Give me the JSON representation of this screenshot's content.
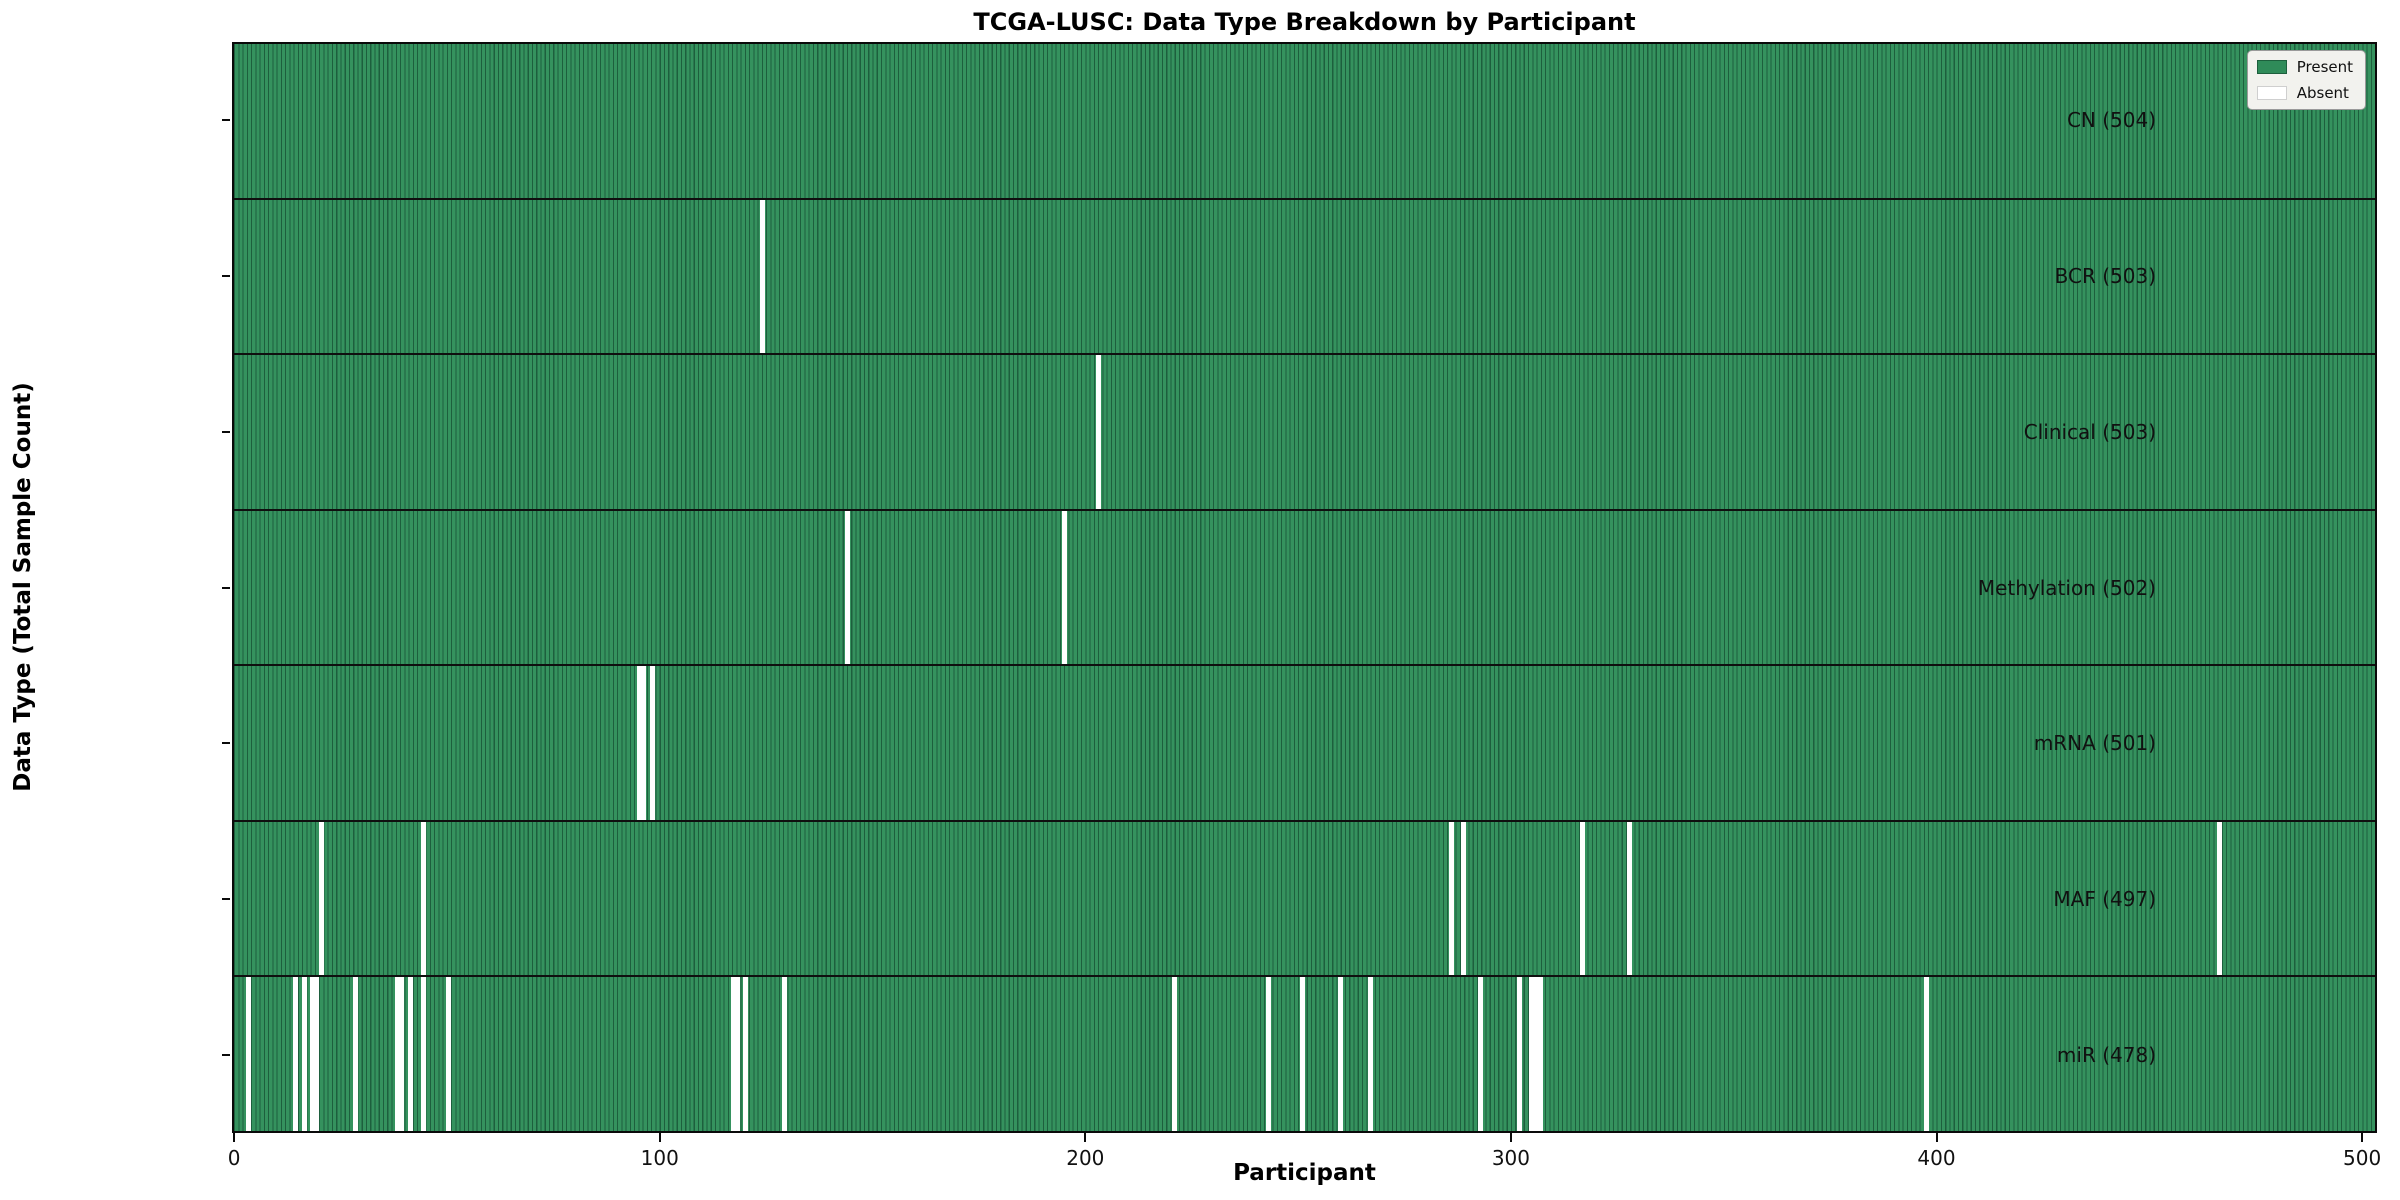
{
  "title": "TCGA-LUSC: Data Type Breakdown by Participant",
  "xlabel": "Participant",
  "ylabel": "Data Type (Total Sample Count)",
  "legend": {
    "present_label": "Present",
    "absent_label": "Absent"
  },
  "colors": {
    "present_fill": "#35925e",
    "bar_edge": "#1d5f3d",
    "absent_fill": "#ffffff",
    "separator": "#0f0f0f",
    "legend_bg": "#f2f2ee"
  },
  "chart_data": {
    "type": "heatmap",
    "title": "TCGA-LUSC: Data Type Breakdown by Participant",
    "xlabel": "Participant",
    "ylabel": "Data Type (Total Sample Count)",
    "legend": [
      "Present",
      "Absent"
    ],
    "legend_position": "upper right",
    "total_participants": 504,
    "xlim": [
      0,
      504
    ],
    "x_ticks": [
      0,
      100,
      200,
      300,
      400,
      500
    ],
    "rows": [
      {
        "name": "CN",
        "label": "CN (504)",
        "present_count": 504,
        "absent_count": 0,
        "absent_participants": []
      },
      {
        "name": "BCR",
        "label": "BCR (503)",
        "present_count": 503,
        "absent_count": 1,
        "absent_participants": [
          124
        ]
      },
      {
        "name": "Clinical",
        "label": "Clinical (503)",
        "present_count": 503,
        "absent_count": 1,
        "absent_participants": [
          203
        ]
      },
      {
        "name": "Methylation",
        "label": "Methylation (502)",
        "present_count": 502,
        "absent_count": 2,
        "absent_participants": [
          144,
          195
        ]
      },
      {
        "name": "mRNA",
        "label": "mRNA (501)",
        "present_count": 501,
        "absent_count": 3,
        "absent_participants": [
          95,
          96,
          98
        ]
      },
      {
        "name": "MAF",
        "label": "MAF (497)",
        "present_count": 497,
        "absent_count": 7,
        "absent_participants": [
          20,
          44,
          286,
          289,
          317,
          328,
          467
        ]
      },
      {
        "name": "miR",
        "label": "miR (478)",
        "present_count": 478,
        "absent_count": 26,
        "absent_participants": [
          3,
          14,
          16,
          18,
          19,
          28,
          38,
          39,
          41,
          44,
          50,
          117,
          118,
          120,
          129,
          221,
          243,
          251,
          260,
          267,
          293,
          302,
          305,
          306,
          307,
          398
        ]
      }
    ]
  }
}
